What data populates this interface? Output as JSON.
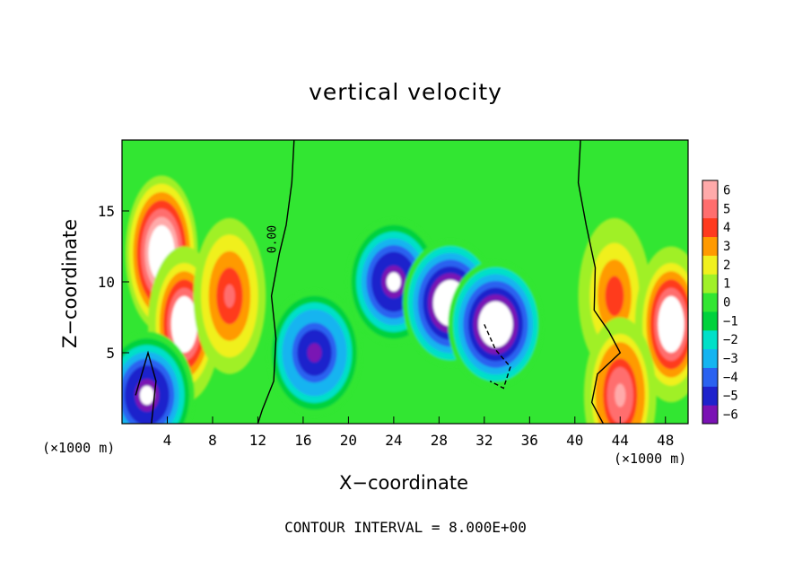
{
  "chart_data": {
    "type": "heatmap",
    "title": "vertical velocity",
    "xlabel": "X−coordinate",
    "ylabel": "Z−coordinate",
    "x_unit": "(×1000 m)",
    "xlim": [
      0,
      50
    ],
    "ylim": [
      0,
      20
    ],
    "x_ticks": [
      4,
      8,
      12,
      16,
      20,
      24,
      28,
      32,
      36,
      40,
      44,
      48
    ],
    "y_ticks": [
      5,
      10,
      15
    ],
    "colorbar": {
      "ticks": [
        6,
        5,
        4,
        3,
        2,
        1,
        0,
        -1,
        -2,
        -3,
        -4,
        -5,
        -6
      ],
      "tick_labels": [
        "6",
        "5",
        "4",
        "3",
        "2",
        "1",
        "0",
        "−1",
        "−2",
        "−3",
        "−4",
        "−5",
        "−6"
      ],
      "min": -6,
      "max": 6,
      "colors": [
        "#7a12b4",
        "#1e22cc",
        "#2a62f0",
        "#14b4f0",
        "#00e0c8",
        "#00d23c",
        "#32e632",
        "#a0f028",
        "#f0f01e",
        "#ff9a00",
        "#ff3a1e",
        "#ff6e6e",
        "#ffaaaa"
      ],
      "saturated_color": "#ffffff"
    },
    "contour_label": "0.00",
    "contour_interval_text": "CONTOUR INTERVAL = 8.000E+00",
    "features": [
      {
        "kind": "updraft",
        "x": 3.5,
        "z": 12,
        "value": 9
      },
      {
        "kind": "updraft",
        "x": 5.5,
        "z": 7,
        "value": 8
      },
      {
        "kind": "updraft",
        "x": 9.5,
        "z": 9,
        "value": 5
      },
      {
        "kind": "downdraft",
        "x": 2.2,
        "z": 2,
        "value": -7
      },
      {
        "kind": "downdraft",
        "x": 24,
        "z": 10,
        "value": -7
      },
      {
        "kind": "downdraft",
        "x": 29,
        "z": 8.5,
        "value": -9
      },
      {
        "kind": "downdraft",
        "x": 33,
        "z": 7,
        "value": -9
      },
      {
        "kind": "downdraft",
        "x": 17,
        "z": 5,
        "value": -6
      },
      {
        "kind": "updraft",
        "x": 43.5,
        "z": 9,
        "value": 4
      },
      {
        "kind": "updraft",
        "x": 48.5,
        "z": 7,
        "value": 8
      },
      {
        "kind": "updraft",
        "x": 44,
        "z": 2,
        "value": 6
      }
    ]
  }
}
